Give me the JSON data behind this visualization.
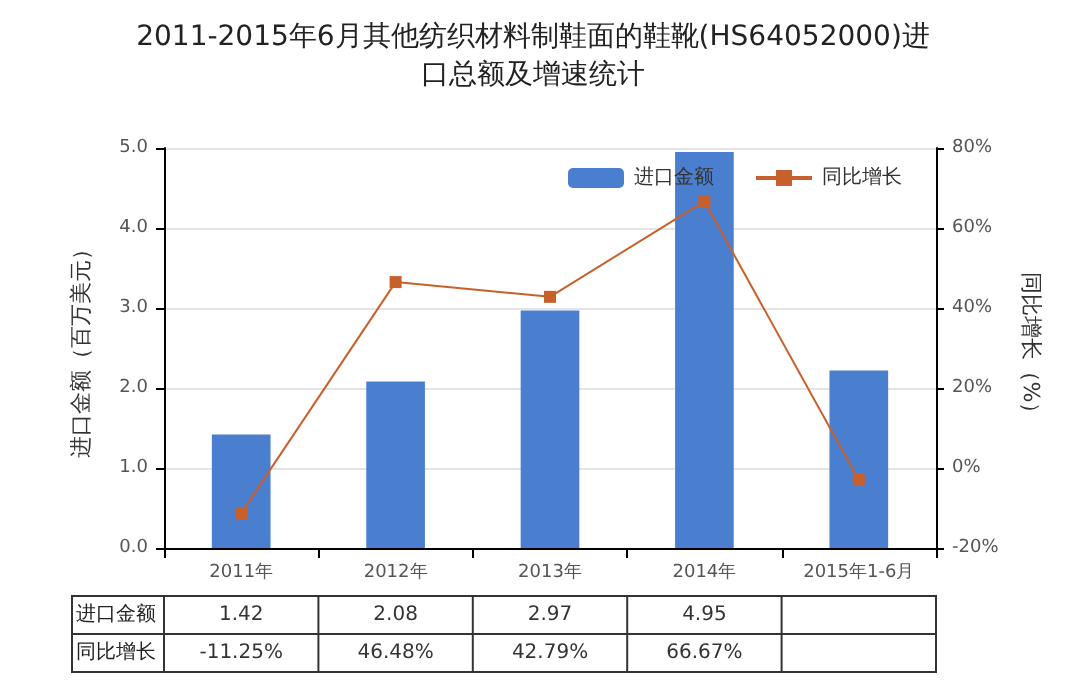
{
  "chart_data": {
    "type": "bar",
    "title": "2011-2015年6月其他纺织材料制鞋面的鞋靴(HS64052000)进口总额及增速统计",
    "ylabel": "进口金额（百万美元）",
    "y2label": "同比增长（%）",
    "categories": [
      "2011年",
      "2012年",
      "2013年",
      "2014年",
      "2015年1-6月"
    ],
    "series": [
      {
        "name": "进口金额",
        "color": "#4a7fd0",
        "values": [
          1.42,
          2.08,
          2.97,
          4.95,
          2.22
        ],
        "value_labels": [
          "1.42",
          "2.08",
          "2.97",
          "4.95",
          null
        ]
      },
      {
        "name": "同比增长",
        "type": "line",
        "axis": "y2",
        "color": "#c8602c",
        "values": [
          -11.25,
          46.48,
          42.79,
          66.67,
          -3
        ],
        "value_labels": [
          "-11.25%",
          "46.48%",
          "42.79%",
          "66.67%",
          null
        ]
      }
    ],
    "ylim": [
      0,
      5
    ],
    "yticks": [
      {
        "value": 0,
        "label": "0.0"
      },
      {
        "value": 1,
        "label": "1.0"
      },
      {
        "value": 2,
        "label": "2.0"
      },
      {
        "value": 3,
        "label": "3.0"
      },
      {
        "value": 4,
        "label": "4.0"
      },
      {
        "value": 5,
        "label": "5.0"
      }
    ],
    "y2lim": [
      -20,
      80
    ],
    "y2ticks": [
      {
        "value": -20,
        "label": "-20%"
      },
      {
        "value": 0,
        "label": "0%"
      },
      {
        "value": 20,
        "label": "20%"
      },
      {
        "value": 40,
        "label": "40%"
      },
      {
        "value": 60,
        "label": "60%"
      },
      {
        "value": 80,
        "label": "80%"
      }
    ],
    "grid": "y",
    "legend": "top right",
    "marker": "square",
    "line_style": "solid"
  }
}
